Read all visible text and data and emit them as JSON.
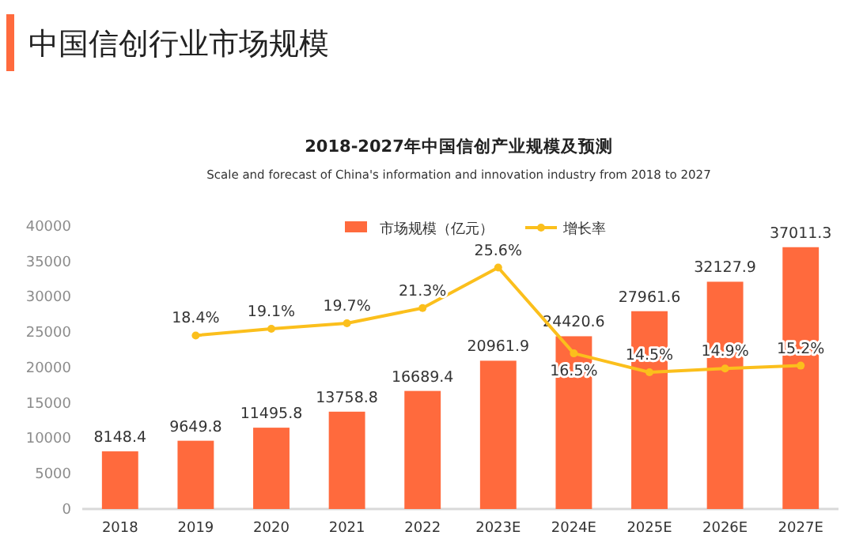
{
  "chart_data": {
    "type": "bar",
    "title": "中国信创行业市场规模",
    "subtitle": "2018-2027年中国信创产业规模及预测",
    "annotations": [
      "Scale and forecast of China's information and innovation industry from 2018 to 2027"
    ],
    "categories": [
      "2018",
      "2019",
      "2020",
      "2021",
      "2022",
      "2023E",
      "2024E",
      "2025E",
      "2026E",
      "2027E"
    ],
    "series": [
      {
        "name": "市场规模（亿元）",
        "color": "#ff6a3d",
        "values": [
          8148.4,
          9649.8,
          11495.8,
          13758.8,
          16689.4,
          20961.9,
          24420.6,
          27961.6,
          32127.9,
          37011.3
        ],
        "value_labels": [
          "8148.4",
          "9649.8",
          "11495.8",
          "13758.8",
          "16689.4",
          "20961.9",
          "24420.6",
          "27961.6",
          "32127.9",
          "37011.3"
        ]
      },
      {
        "name": "增长率",
        "type": "line",
        "axis": "y2",
        "color": "#fbbf1c",
        "values": [
          null,
          18.4,
          19.1,
          19.7,
          21.3,
          25.6,
          16.5,
          14.5,
          14.9,
          15.2
        ],
        "value_labels": [
          null,
          "18.4%",
          "19.1%",
          "19.7%",
          "21.3%",
          "25.6%",
          "16.5%",
          "14.5%",
          "14.9%",
          "15.2%"
        ]
      }
    ],
    "ylim": [
      0,
      40000
    ],
    "yticks": [
      0,
      5000,
      10000,
      15000,
      20000,
      25000,
      30000,
      35000,
      40000
    ],
    "y2lim": [
      0,
      30
    ],
    "legend": "top",
    "grid": false,
    "marker": "circle",
    "line_style": "solid"
  }
}
